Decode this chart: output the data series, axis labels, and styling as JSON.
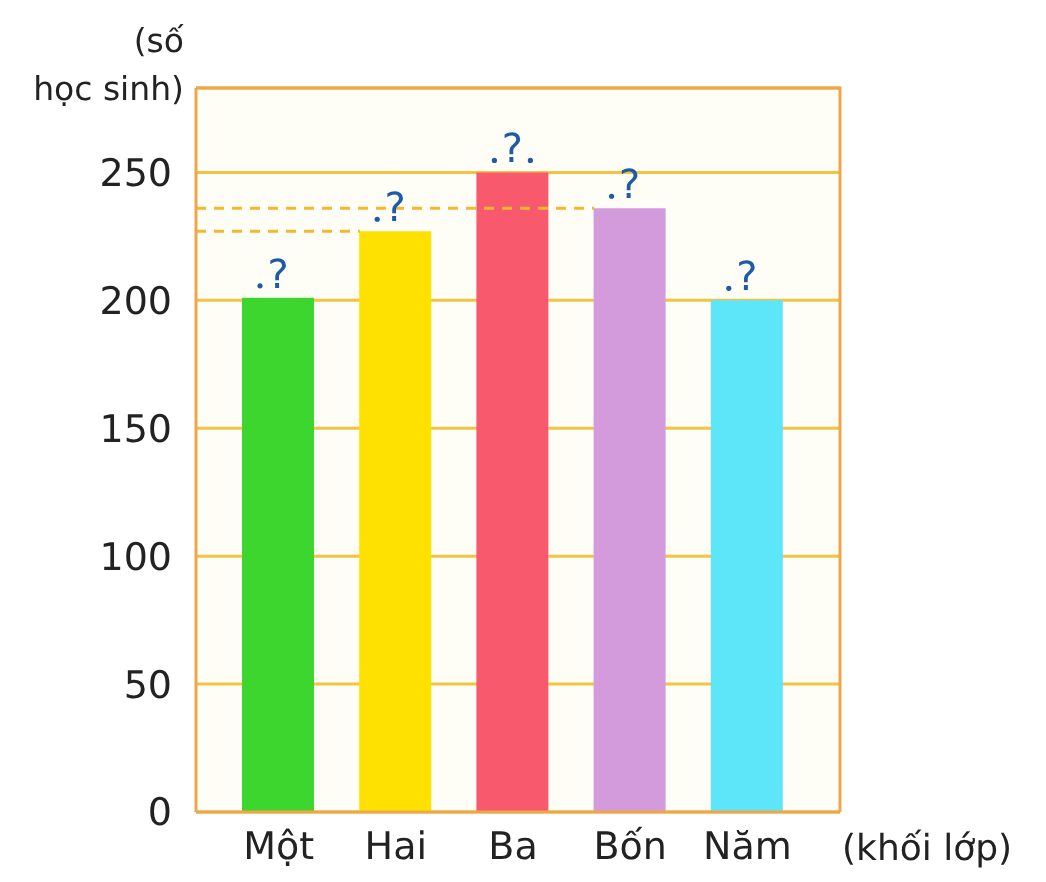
{
  "chart_data": {
    "type": "bar",
    "ylabel": "(số học sinh)",
    "xlabel": "(khối lớp)",
    "categories": [
      "Một",
      "Hai",
      "Ba",
      "Bốn",
      "Năm"
    ],
    "values": [
      201,
      227,
      250,
      236,
      200
    ],
    "colors": [
      "#3dd62e",
      "#ffe100",
      "#f9596c",
      "#d39bdc",
      "#5de6fa"
    ],
    "ylim": [
      0,
      283
    ],
    "yticks": [
      0,
      50,
      100,
      150,
      200,
      250
    ],
    "grid": "y",
    "value_labels": [
      "?",
      "?",
      "?",
      "?",
      "?"
    ],
    "ref_lines": [
      {
        "axis": "y",
        "value": 236,
        "color": "#f5b731",
        "line_style": "dashed"
      },
      {
        "axis": "y",
        "value": 227,
        "color": "#f5b731",
        "line_style": "dashed"
      }
    ]
  }
}
